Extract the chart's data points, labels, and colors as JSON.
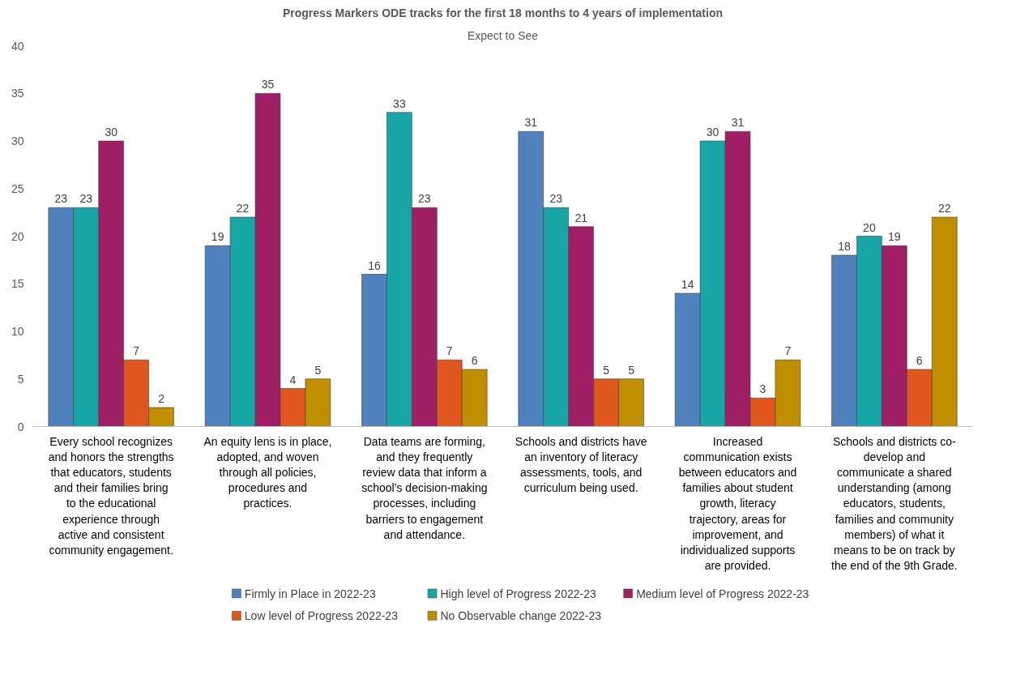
{
  "chart_data": {
    "type": "bar",
    "title": "Progress Markers ODE tracks for the first 18 months to 4 years of implementation",
    "subtitle": "Expect to See",
    "categories": [
      "Every school recognizes\nand honors the strengths\nthat educators, students\nand their families bring\nto the educational\nexperience through\nactive and consistent\ncommunity engagement.",
      "An equity lens is in place,\nadopted, and woven\nthrough all policies,\nprocedures and\npractices.",
      "Data teams are forming,\nand they frequently\nreview data that inform a\nschool’s decision-making\nprocesses, including\nbarriers to engagement\nand attendance.",
      "Schools and districts have\nan inventory of literacy\nassessments, tools, and\ncurriculum being used.",
      "Increased\ncommunication exists\nbetween educators and\nfamilies about student\ngrowth, literacy\ntrajectory, areas for\nimprovement, and\nindividualized supports\nare provided.",
      "Schools and districts co-\ndevelop and\ncommunicate a shared\nunderstanding (among\neducators, students,\nfamilies and community\nmembers) of what it\nmeans to be on track by\nthe end of the 9th Grade."
    ],
    "series": [
      {
        "name": "Firmly in Place in 2022-23",
        "color": "#4f81bd",
        "values": [
          23,
          19,
          16,
          31,
          14,
          18
        ]
      },
      {
        "name": "High level of Progress 2022-23",
        "color": "#17a5a5",
        "values": [
          23,
          22,
          33,
          23,
          30,
          20
        ]
      },
      {
        "name": "Medium level of Progress 2022-23",
        "color": "#9e1f63",
        "values": [
          30,
          35,
          23,
          21,
          31,
          19
        ]
      },
      {
        "name": "Low level of Progress 2022-23",
        "color": "#e0561f",
        "values": [
          7,
          4,
          7,
          5,
          3,
          6
        ]
      },
      {
        "name": "No Observable change 2022-23",
        "color": "#bf8f00",
        "values": [
          2,
          5,
          6,
          5,
          7,
          22
        ]
      }
    ],
    "ylim": [
      0,
      40
    ],
    "yticks": [
      0,
      5,
      10,
      15,
      20,
      25,
      30,
      35,
      40
    ],
    "grid": false,
    "data_labels": true,
    "legend": "bottom"
  }
}
